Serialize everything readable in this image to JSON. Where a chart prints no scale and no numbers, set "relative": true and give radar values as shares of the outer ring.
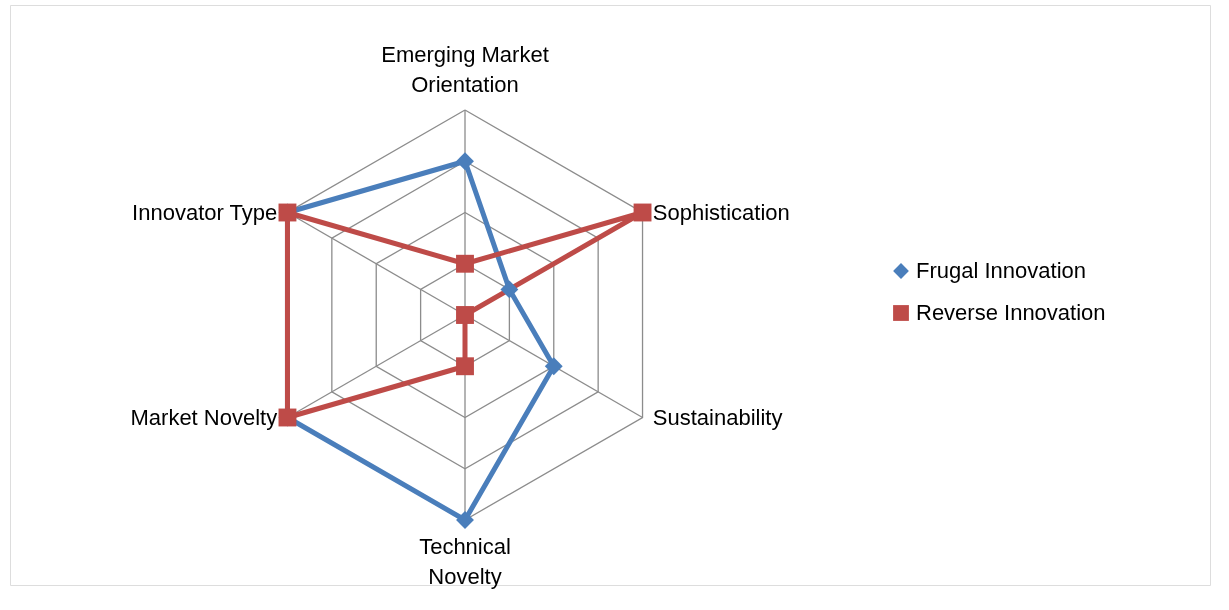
{
  "chart_data": {
    "type": "radar",
    "relative": true,
    "legend": "right",
    "grid": true,
    "categories": [
      "Emerging Market Orientation",
      "Sophistication",
      "Sustainability",
      "Technical Novelty",
      "Market Novelty",
      "Innovator Type"
    ],
    "series": [
      {
        "name": "Frugal Innovation",
        "color": "#4a7ebb",
        "marker": "diamond",
        "values": [
          0.75,
          0.25,
          0.5,
          1,
          1,
          1
        ]
      },
      {
        "name": "Reverse Innovation",
        "color": "#be4b48",
        "marker": "square",
        "values": [
          0.25,
          1,
          0,
          0.25,
          1,
          1
        ]
      }
    ]
  }
}
